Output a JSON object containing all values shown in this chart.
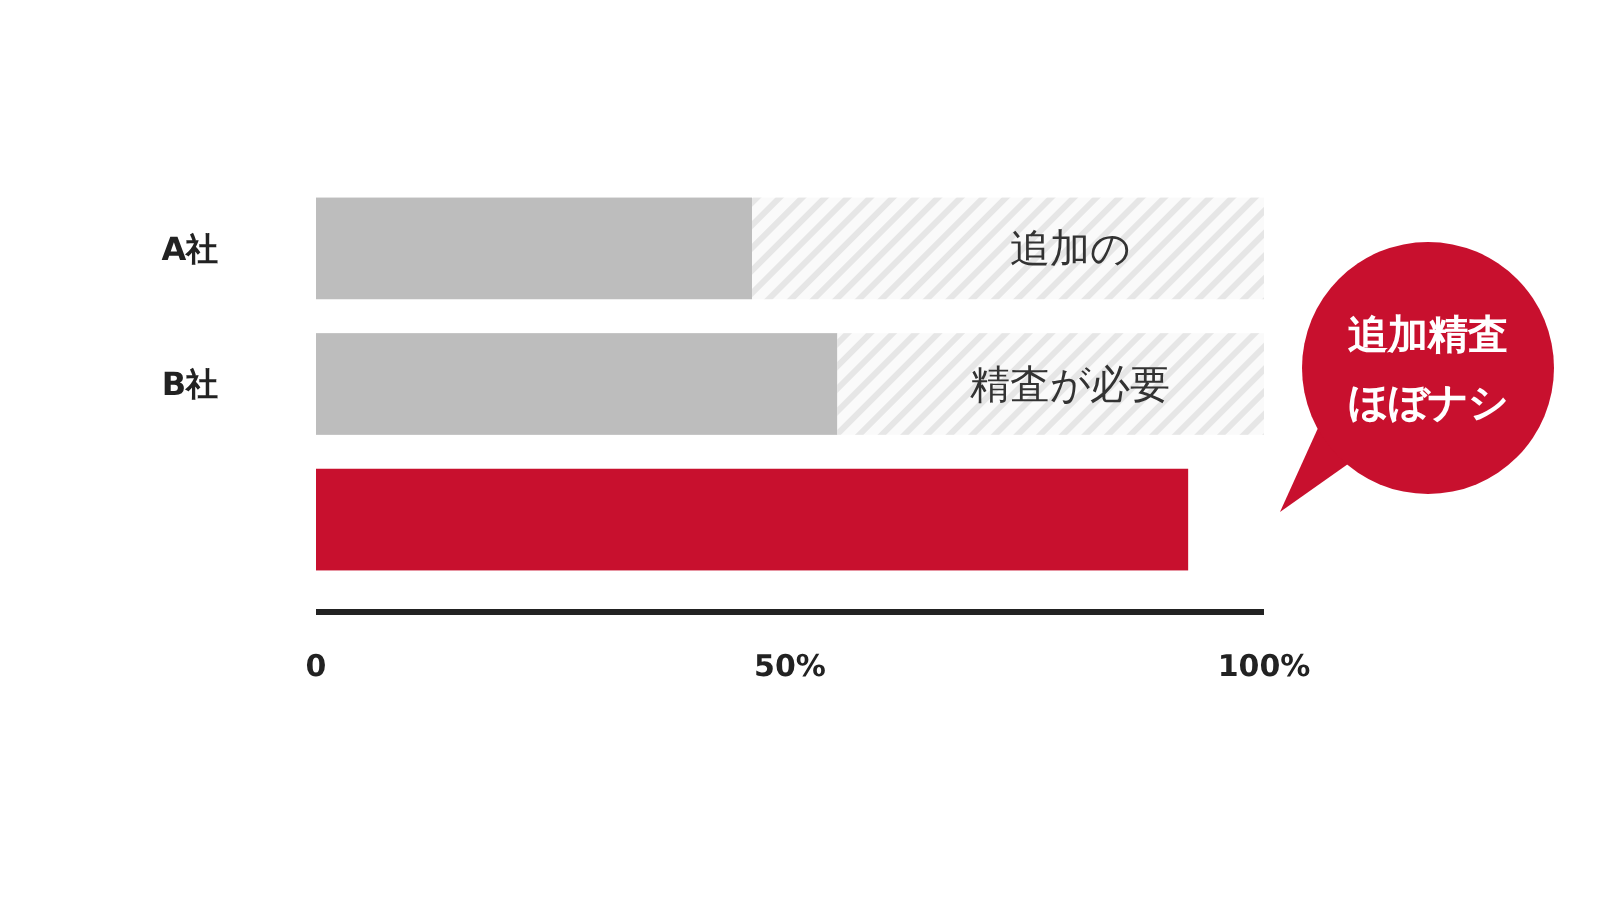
{
  "chart_data": {
    "type": "bar",
    "orientation": "horizontal",
    "stacked": true,
    "categories": [
      "A社",
      "B社",
      null
    ],
    "series": [
      {
        "color": "#bdbdbd",
        "colors": [
          "#bdbdbd",
          "#bdbdbd",
          "#c8102e"
        ],
        "values": [
          46,
          55,
          92
        ]
      },
      {
        "color": "#e6e6e6",
        "values": [
          54,
          45,
          null
        ]
      }
    ],
    "xlim": [
      0,
      100
    ],
    "xticks": [
      0,
      {
        "value": 50,
        "label": "50%"
      },
      {
        "value": 100,
        "label": "100%"
      }
    ],
    "grid": false,
    "annotations": [
      "追加の",
      "精査が必要",
      "追加精査",
      "ほぼナシ"
    ]
  }
}
